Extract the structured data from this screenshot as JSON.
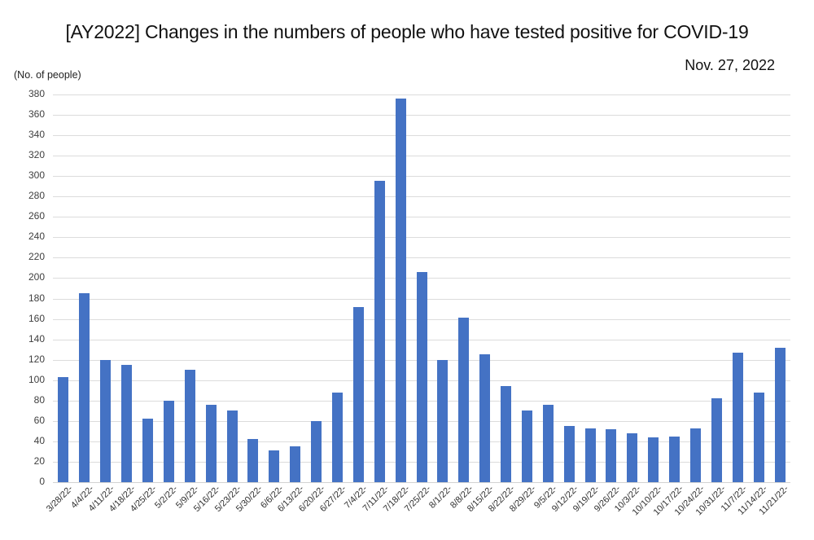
{
  "chart_data": {
    "type": "bar",
    "title": "[AY2022] Changes in the numbers of people who have tested positive for COVID-19",
    "date_label": "Nov. 27, 2022",
    "ylabel": "(No. of people)",
    "xlabel": "",
    "ylim": [
      0,
      380
    ],
    "ytick_step": 20,
    "grid": "horizontal",
    "legend": "none",
    "bar_color": "#4472c4",
    "gridline_color": "#dcdcdc",
    "categories": [
      "3/28/22-",
      "4/4/22-",
      "4/11/22-",
      "4/18/22-",
      "4/25/22-",
      "5/2/22-",
      "5/9/22-",
      "5/16/22-",
      "5/23/22-",
      "5/30/22-",
      "6/6/22-",
      "6/13/22-",
      "6/20/22-",
      "6/27/22-",
      "7/4/22-",
      "7/11/22-",
      "7/18/22-",
      "7/25/22-",
      "8/1/22-",
      "8/8/22-",
      "8/15/22-",
      "8/22/22-",
      "8/29/22-",
      "9/5/22-",
      "9/12/22-",
      "9/19/22-",
      "9/26/22-",
      "10/3/22-",
      "10/10/22-",
      "10/17/22-",
      "10/24/22-",
      "10/31/22-",
      "11/7/22-",
      "11/14/22-",
      "11/21/22-"
    ],
    "values": [
      103,
      185,
      120,
      115,
      62,
      80,
      110,
      76,
      70,
      42,
      31,
      35,
      60,
      88,
      172,
      295,
      376,
      206,
      120,
      161,
      125,
      94,
      70,
      76,
      55,
      53,
      52,
      48,
      44,
      45,
      53,
      82,
      127,
      88,
      132
    ]
  }
}
